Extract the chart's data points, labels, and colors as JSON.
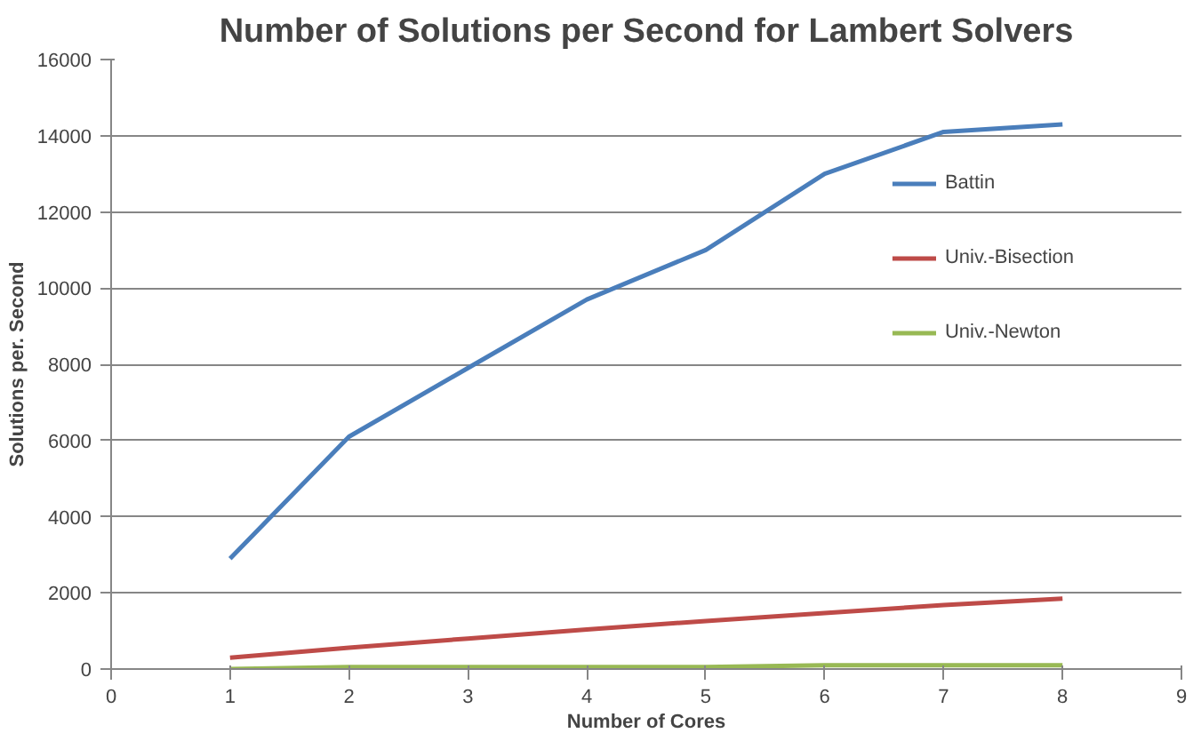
{
  "chart_data": {
    "type": "line",
    "title": "Number of Solutions per Second for Lambert Solvers",
    "xlabel": "Number of Cores",
    "ylabel": "Solutions per. Second",
    "x": [
      1,
      2,
      3,
      4,
      5,
      6,
      7,
      8
    ],
    "series": [
      {
        "name": "Battin",
        "color": "#4a7ebb",
        "values": [
          2900,
          6100,
          7900,
          9700,
          11000,
          13000,
          14100,
          14300
        ]
      },
      {
        "name": "Univ.-Bisection",
        "color": "#be4b48",
        "values": [
          300,
          560,
          800,
          1040,
          1260,
          1470,
          1680,
          1850
        ]
      },
      {
        "name": "Univ.-Newton",
        "color": "#98b954",
        "values": [
          0,
          50,
          50,
          50,
          50,
          100,
          100,
          100
        ]
      }
    ],
    "xlim": [
      0,
      9
    ],
    "xticks": [
      0,
      1,
      2,
      3,
      4,
      5,
      6,
      7,
      8,
      9
    ],
    "ylim": [
      0,
      16000
    ],
    "yticks": [
      0,
      2000,
      4000,
      6000,
      8000,
      10000,
      12000,
      14000,
      16000
    ],
    "grid": "y",
    "legend": "right",
    "line_style": "solid",
    "marker": "none"
  }
}
